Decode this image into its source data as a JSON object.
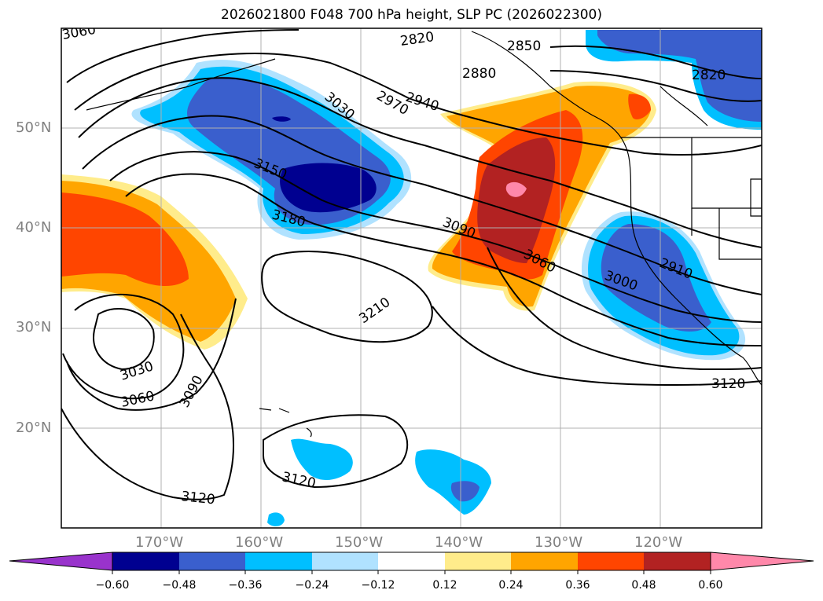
{
  "title": "2026021800 F048 700 hPa height, SLP PC (2026022300)",
  "map": {
    "lat_labels": [
      "50°N",
      "40°N",
      "30°N",
      "20°N"
    ],
    "lon_labels": [
      "170°W",
      "160°W",
      "150°W",
      "140°W",
      "130°W",
      "120°W"
    ],
    "contour_labels": [
      "3060",
      "2820",
      "2850",
      "2880",
      "2820",
      "3030",
      "2970",
      "2940",
      "3150",
      "3180",
      "3090",
      "3060",
      "2910",
      "3000",
      "3210",
      "3030",
      "3060",
      "3090",
      "3120",
      "3120",
      "3120"
    ],
    "grid": true
  },
  "colorbar": {
    "ticks": [
      "−0.60",
      "−0.48",
      "−0.36",
      "−0.24",
      "−0.12",
      "0.12",
      "0.24",
      "0.36",
      "0.48",
      "0.60"
    ],
    "colors": [
      "#9933cc",
      "#000090",
      "#3a5fcd",
      "#00bfff",
      "#b0e2ff",
      "#ffffff",
      "#ffec8b",
      "#ffa500",
      "#ff4500",
      "#b22222",
      "#ff88aa"
    ]
  }
}
